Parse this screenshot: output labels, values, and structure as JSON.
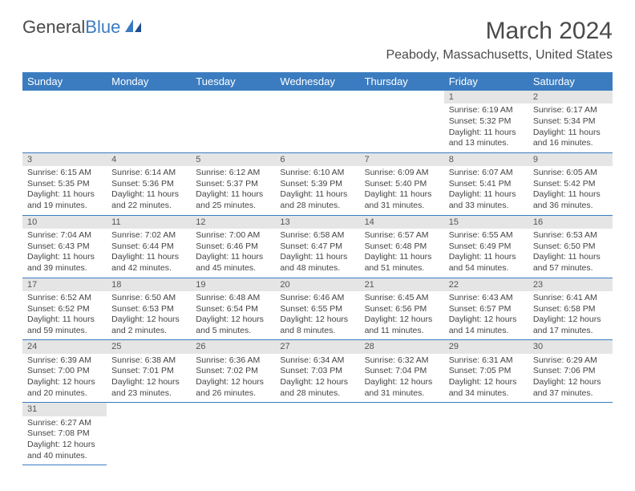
{
  "logo": {
    "text1": "General",
    "text2": "Blue"
  },
  "title": {
    "month": "March 2024",
    "location": "Peabody, Massachusetts, United States"
  },
  "colors": {
    "header_bg": "#3b7cc0",
    "header_text": "#ffffff",
    "daynum_bg": "#e5e5e5",
    "row_border": "#3b7cc0",
    "body_text": "#444444"
  },
  "dayHeaders": [
    "Sunday",
    "Monday",
    "Tuesday",
    "Wednesday",
    "Thursday",
    "Friday",
    "Saturday"
  ],
  "weeks": [
    [
      {
        "n": "",
        "lines": []
      },
      {
        "n": "",
        "lines": []
      },
      {
        "n": "",
        "lines": []
      },
      {
        "n": "",
        "lines": []
      },
      {
        "n": "",
        "lines": []
      },
      {
        "n": "1",
        "lines": [
          "Sunrise: 6:19 AM",
          "Sunset: 5:32 PM",
          "Daylight: 11 hours",
          "and 13 minutes."
        ]
      },
      {
        "n": "2",
        "lines": [
          "Sunrise: 6:17 AM",
          "Sunset: 5:34 PM",
          "Daylight: 11 hours",
          "and 16 minutes."
        ]
      }
    ],
    [
      {
        "n": "3",
        "lines": [
          "Sunrise: 6:15 AM",
          "Sunset: 5:35 PM",
          "Daylight: 11 hours",
          "and 19 minutes."
        ]
      },
      {
        "n": "4",
        "lines": [
          "Sunrise: 6:14 AM",
          "Sunset: 5:36 PM",
          "Daylight: 11 hours",
          "and 22 minutes."
        ]
      },
      {
        "n": "5",
        "lines": [
          "Sunrise: 6:12 AM",
          "Sunset: 5:37 PM",
          "Daylight: 11 hours",
          "and 25 minutes."
        ]
      },
      {
        "n": "6",
        "lines": [
          "Sunrise: 6:10 AM",
          "Sunset: 5:39 PM",
          "Daylight: 11 hours",
          "and 28 minutes."
        ]
      },
      {
        "n": "7",
        "lines": [
          "Sunrise: 6:09 AM",
          "Sunset: 5:40 PM",
          "Daylight: 11 hours",
          "and 31 minutes."
        ]
      },
      {
        "n": "8",
        "lines": [
          "Sunrise: 6:07 AM",
          "Sunset: 5:41 PM",
          "Daylight: 11 hours",
          "and 33 minutes."
        ]
      },
      {
        "n": "9",
        "lines": [
          "Sunrise: 6:05 AM",
          "Sunset: 5:42 PM",
          "Daylight: 11 hours",
          "and 36 minutes."
        ]
      }
    ],
    [
      {
        "n": "10",
        "lines": [
          "Sunrise: 7:04 AM",
          "Sunset: 6:43 PM",
          "Daylight: 11 hours",
          "and 39 minutes."
        ]
      },
      {
        "n": "11",
        "lines": [
          "Sunrise: 7:02 AM",
          "Sunset: 6:44 PM",
          "Daylight: 11 hours",
          "and 42 minutes."
        ]
      },
      {
        "n": "12",
        "lines": [
          "Sunrise: 7:00 AM",
          "Sunset: 6:46 PM",
          "Daylight: 11 hours",
          "and 45 minutes."
        ]
      },
      {
        "n": "13",
        "lines": [
          "Sunrise: 6:58 AM",
          "Sunset: 6:47 PM",
          "Daylight: 11 hours",
          "and 48 minutes."
        ]
      },
      {
        "n": "14",
        "lines": [
          "Sunrise: 6:57 AM",
          "Sunset: 6:48 PM",
          "Daylight: 11 hours",
          "and 51 minutes."
        ]
      },
      {
        "n": "15",
        "lines": [
          "Sunrise: 6:55 AM",
          "Sunset: 6:49 PM",
          "Daylight: 11 hours",
          "and 54 minutes."
        ]
      },
      {
        "n": "16",
        "lines": [
          "Sunrise: 6:53 AM",
          "Sunset: 6:50 PM",
          "Daylight: 11 hours",
          "and 57 minutes."
        ]
      }
    ],
    [
      {
        "n": "17",
        "lines": [
          "Sunrise: 6:52 AM",
          "Sunset: 6:52 PM",
          "Daylight: 11 hours",
          "and 59 minutes."
        ]
      },
      {
        "n": "18",
        "lines": [
          "Sunrise: 6:50 AM",
          "Sunset: 6:53 PM",
          "Daylight: 12 hours",
          "and 2 minutes."
        ]
      },
      {
        "n": "19",
        "lines": [
          "Sunrise: 6:48 AM",
          "Sunset: 6:54 PM",
          "Daylight: 12 hours",
          "and 5 minutes."
        ]
      },
      {
        "n": "20",
        "lines": [
          "Sunrise: 6:46 AM",
          "Sunset: 6:55 PM",
          "Daylight: 12 hours",
          "and 8 minutes."
        ]
      },
      {
        "n": "21",
        "lines": [
          "Sunrise: 6:45 AM",
          "Sunset: 6:56 PM",
          "Daylight: 12 hours",
          "and 11 minutes."
        ]
      },
      {
        "n": "22",
        "lines": [
          "Sunrise: 6:43 AM",
          "Sunset: 6:57 PM",
          "Daylight: 12 hours",
          "and 14 minutes."
        ]
      },
      {
        "n": "23",
        "lines": [
          "Sunrise: 6:41 AM",
          "Sunset: 6:58 PM",
          "Daylight: 12 hours",
          "and 17 minutes."
        ]
      }
    ],
    [
      {
        "n": "24",
        "lines": [
          "Sunrise: 6:39 AM",
          "Sunset: 7:00 PM",
          "Daylight: 12 hours",
          "and 20 minutes."
        ]
      },
      {
        "n": "25",
        "lines": [
          "Sunrise: 6:38 AM",
          "Sunset: 7:01 PM",
          "Daylight: 12 hours",
          "and 23 minutes."
        ]
      },
      {
        "n": "26",
        "lines": [
          "Sunrise: 6:36 AM",
          "Sunset: 7:02 PM",
          "Daylight: 12 hours",
          "and 26 minutes."
        ]
      },
      {
        "n": "27",
        "lines": [
          "Sunrise: 6:34 AM",
          "Sunset: 7:03 PM",
          "Daylight: 12 hours",
          "and 28 minutes."
        ]
      },
      {
        "n": "28",
        "lines": [
          "Sunrise: 6:32 AM",
          "Sunset: 7:04 PM",
          "Daylight: 12 hours",
          "and 31 minutes."
        ]
      },
      {
        "n": "29",
        "lines": [
          "Sunrise: 6:31 AM",
          "Sunset: 7:05 PM",
          "Daylight: 12 hours",
          "and 34 minutes."
        ]
      },
      {
        "n": "30",
        "lines": [
          "Sunrise: 6:29 AM",
          "Sunset: 7:06 PM",
          "Daylight: 12 hours",
          "and 37 minutes."
        ]
      }
    ],
    [
      {
        "n": "31",
        "lines": [
          "Sunrise: 6:27 AM",
          "Sunset: 7:08 PM",
          "Daylight: 12 hours",
          "and 40 minutes."
        ]
      },
      {
        "n": "",
        "lines": []
      },
      {
        "n": "",
        "lines": []
      },
      {
        "n": "",
        "lines": []
      },
      {
        "n": "",
        "lines": []
      },
      {
        "n": "",
        "lines": []
      },
      {
        "n": "",
        "lines": []
      }
    ]
  ]
}
